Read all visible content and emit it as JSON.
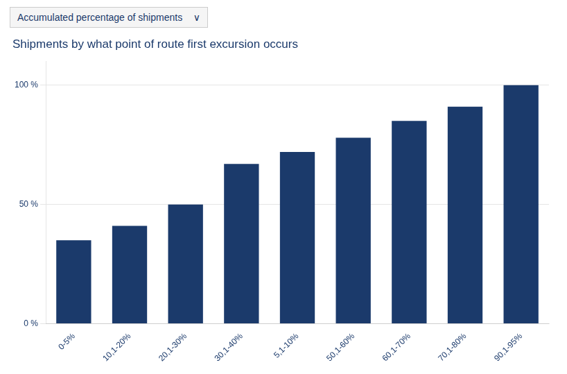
{
  "chart_data": {
    "type": "bar",
    "title": "Shipments by what point of route first excursion occurs",
    "annotations": [
      "Accumulated percentage of shipments    ∨"
    ],
    "categories": [
      "0-5%",
      "10,1-20%",
      "20,1-30%",
      "30,1-40%",
      "5,1-10%",
      "50,1-60%",
      "60,1-70%",
      "70,1-80%",
      "90,1-95%"
    ],
    "values": [
      35,
      41,
      50,
      67,
      72,
      78,
      85,
      91,
      100
    ],
    "color": "#1b3a6b",
    "ylim": [
      0,
      110
    ],
    "yticks": [
      {
        "value": 0,
        "label": "0 %"
      },
      {
        "value": 50,
        "label": "50 %"
      },
      {
        "value": 100,
        "label": "100 %"
      }
    ],
    "grid": true
  }
}
